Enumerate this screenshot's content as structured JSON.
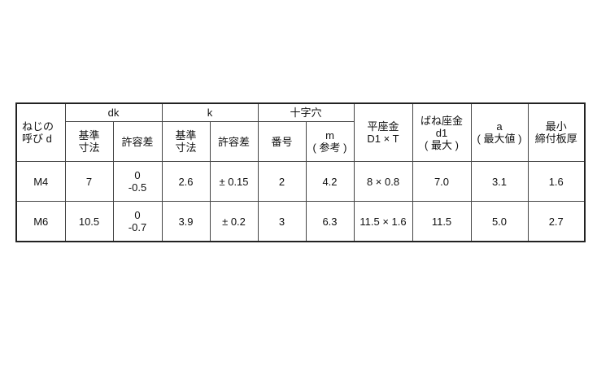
{
  "table": {
    "header": {
      "nominal": [
        "ねじの",
        "呼び d"
      ],
      "dk": "dk",
      "k": "k",
      "cross_recess": "十字穴",
      "flat_washer": [
        "平座金",
        "D1 × T"
      ],
      "spring_washer": [
        "ばね座金",
        "d1",
        "( 最大 )"
      ],
      "a": [
        "a",
        "( 最大値 )"
      ],
      "min_thickness": [
        "最小",
        "締付板厚"
      ],
      "dk_basic": [
        "基準",
        "寸法"
      ],
      "dk_tol": "許容差",
      "k_basic": [
        "基準",
        "寸法"
      ],
      "k_tol": "許容差",
      "recess_no": "番号",
      "recess_m": [
        "m",
        "( 参考 )"
      ]
    },
    "rows": [
      {
        "d": "M4",
        "dk": "7",
        "dk_tol": [
          "0",
          "-0.5"
        ],
        "k": "2.6",
        "k_tol": "± 0.15",
        "no": "2",
        "m": "4.2",
        "flat": "8 × 0.8",
        "spring": "7.0",
        "a": "3.1",
        "min": "1.6"
      },
      {
        "d": "M6",
        "dk": "10.5",
        "dk_tol": [
          "0",
          "-0.7"
        ],
        "k": "3.9",
        "k_tol": "± 0.2",
        "no": "3",
        "m": "6.3",
        "flat": "11.5 × 1.6",
        "spring": "11.5",
        "a": "5.0",
        "min": "2.7"
      }
    ]
  }
}
